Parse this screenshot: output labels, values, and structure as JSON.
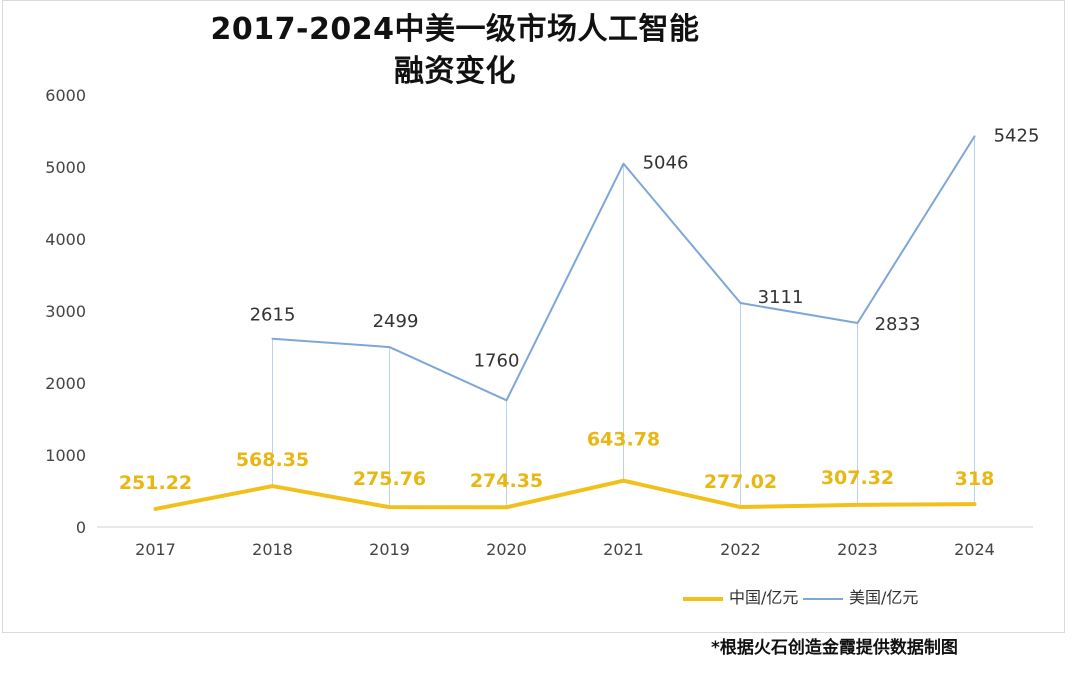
{
  "chart_data": {
    "type": "line",
    "title_line1": "2017-2024中美一级市场人工智能",
    "title_line2": "融资变化",
    "categories": [
      "2017",
      "2018",
      "2019",
      "2020",
      "2021",
      "2022",
      "2023",
      "2024"
    ],
    "yticks": [
      "0",
      "1000",
      "2000",
      "3000",
      "4000",
      "5000",
      "6000"
    ],
    "ylim": [
      0,
      6000
    ],
    "series": [
      {
        "name": "中国/亿元",
        "color": "#f2c01b",
        "values": [
          251.22,
          568.35,
          275.76,
          274.35,
          643.78,
          277.02,
          307.32,
          318
        ],
        "labels": [
          "251.22",
          "568.35",
          "275.76",
          "274.35",
          "643.78",
          "277.02",
          "307.32",
          "318"
        ]
      },
      {
        "name": "美国/亿元",
        "color": "#7ea6d8",
        "values": [
          null,
          2615,
          2499,
          1760,
          5046,
          3111,
          2833,
          5425
        ],
        "labels": [
          "",
          "2615",
          "2499",
          "1760",
          "5046",
          "3111",
          "2833",
          "5425"
        ]
      }
    ],
    "legend_position": "bottom-right"
  },
  "footnote": "*根据火石创造金霞提供数据制图"
}
